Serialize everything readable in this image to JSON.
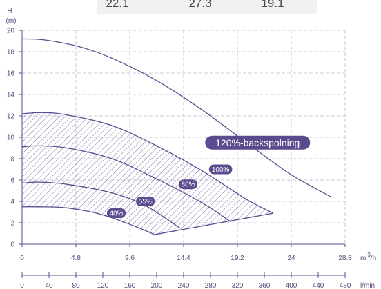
{
  "chart_data": {
    "type": "line",
    "top_values": [
      "22.1",
      "27.3",
      "19.1"
    ],
    "y_axis": {
      "label": "H",
      "unit": "(m)",
      "min": 0,
      "max": 20,
      "ticks": [
        0,
        2,
        4,
        6,
        8,
        10,
        12,
        14,
        16,
        18,
        20
      ]
    },
    "x_axis_m3h": {
      "unit": "m³/h",
      "unit_base": "m",
      "unit_sup": "3",
      "unit_suffix": "/h",
      "min": 0,
      "max": 28.8,
      "ticks": [
        "0",
        "4.8",
        "9.6",
        "14.4",
        "19.2",
        "24",
        "28.8"
      ]
    },
    "x_axis_lmin": {
      "unit": "l/min",
      "min": 0,
      "max": 480,
      "ticks": [
        "0",
        "40",
        "80",
        "120",
        "160",
        "200",
        "240",
        "280",
        "320",
        "360",
        "400",
        "440",
        "480"
      ]
    },
    "grid": true,
    "series": [
      {
        "name": "120%-backspolning",
        "x": [
          0,
          2,
          5,
          8,
          12,
          16,
          20,
          24,
          27.6
        ],
        "y": [
          19.2,
          19.1,
          18.5,
          17.4,
          15.3,
          12.6,
          9.5,
          6.5,
          4.4
        ]
      },
      {
        "name": "100%",
        "x": [
          0,
          1.8,
          4,
          8,
          12,
          16,
          20,
          22.4
        ],
        "y": [
          12.2,
          12.3,
          12.1,
          11.1,
          9.2,
          6.9,
          4.2,
          2.9
        ]
      },
      {
        "name": "80%",
        "x": [
          0,
          1.5,
          4,
          8,
          12,
          16,
          18.6
        ],
        "y": [
          9.1,
          9.2,
          9.0,
          8.0,
          6.1,
          3.9,
          2.1
        ]
      },
      {
        "name": "55%",
        "x": [
          0,
          1.5,
          4,
          8,
          11,
          14.1
        ],
        "y": [
          5.7,
          5.8,
          5.6,
          4.8,
          3.6,
          1.5
        ]
      },
      {
        "name": "40%",
        "x": [
          0,
          1.5,
          4,
          7,
          10,
          11.8
        ],
        "y": [
          3.5,
          3.5,
          3.4,
          2.8,
          1.7,
          0.9
        ]
      }
    ],
    "operating_region": {
      "upper": "100%",
      "lower": "40%",
      "right_edge": [
        [
          11.8,
          0.9
        ],
        [
          22.4,
          2.9
        ]
      ]
    },
    "labels": [
      {
        "text": "120%-backspolning",
        "x": 21,
        "y": 9.5,
        "size": "large"
      },
      {
        "text": "100%",
        "x": 17.7,
        "y": 7.0
      },
      {
        "text": "80%",
        "x": 14.8,
        "y": 5.6
      },
      {
        "text": "55%",
        "x": 11.0,
        "y": 4.0
      },
      {
        "text": "40%",
        "x": 8.4,
        "y": 2.9
      }
    ]
  },
  "colors": {
    "curve": "#5b4a8e",
    "label_bg": "#5b4a8e",
    "grid": "#bdb6cf",
    "axis": "#5b4a8e",
    "tick_text": "#5a4a7a",
    "top_band": "#f1f1f1"
  }
}
